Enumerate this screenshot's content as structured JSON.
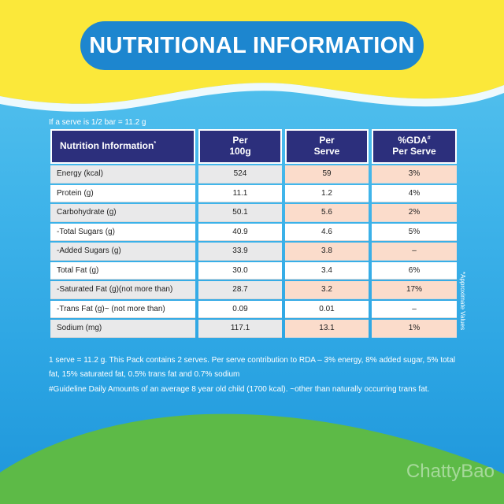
{
  "title": "NUTRITIONAL INFORMATION",
  "serve_note": "If a serve is 1/2 bar = 11.2 g",
  "table": {
    "headers": {
      "nutrition": "Nutrition Information",
      "nutrition_mark": "*",
      "per100_line1": "Per",
      "per100_line2": "100g",
      "perserve_line1": "Per",
      "perserve_line2": "Serve",
      "gda_line1": "%GDA",
      "gda_mark": "#",
      "gda_line2": "Per Serve"
    },
    "rows": [
      {
        "label": "Energy (kcal)",
        "per100": "524",
        "perserve": "59",
        "gda": "3%"
      },
      {
        "label": "Protein (g)",
        "per100": "11.1",
        "perserve": "1.2",
        "gda": "4%"
      },
      {
        "label": "Carbohydrate (g)",
        "per100": "50.1",
        "perserve": "5.6",
        "gda": "2%"
      },
      {
        "label": "-Total Sugars (g)",
        "per100": "40.9",
        "perserve": "4.6",
        "gda": "5%"
      },
      {
        "label": "-Added Sugars (g)",
        "per100": "33.9",
        "perserve": "3.8",
        "gda": "–"
      },
      {
        "label": "Total Fat (g)",
        "per100": "30.0",
        "perserve": "3.4",
        "gda": "6%"
      },
      {
        "label": "-Saturated Fat (g)(not more than)",
        "per100": "28.7",
        "perserve": "3.2",
        "gda": "17%"
      },
      {
        "label": "-Trans Fat (g)~ (not more than)",
        "per100": "0.09",
        "perserve": "0.01",
        "gda": "–"
      },
      {
        "label": "Sodium (mg)",
        "per100": "117.1",
        "perserve": "13.1",
        "gda": "1%"
      }
    ]
  },
  "side_note": "*Approximate Values",
  "footnote_1": "1 serve = 11.2 g. This Pack contains 2 serves. Per serve contribution to RDA – 3% energy, 8% added sugar, 5% total fat, 15% saturated fat, 0.5% trans fat and 0.7% sodium",
  "footnote_2": "#Guideline Daily Amounts of an average 8 year old child (1700 kcal). ~other than naturally occurring trans fat.",
  "watermark": "ChattyBao",
  "colors": {
    "yellow": "#fbe83a",
    "title_blue": "#1d86cf",
    "header_navy": "#2c2f7c",
    "peach": "#fbdccb",
    "green": "#5dba47"
  }
}
